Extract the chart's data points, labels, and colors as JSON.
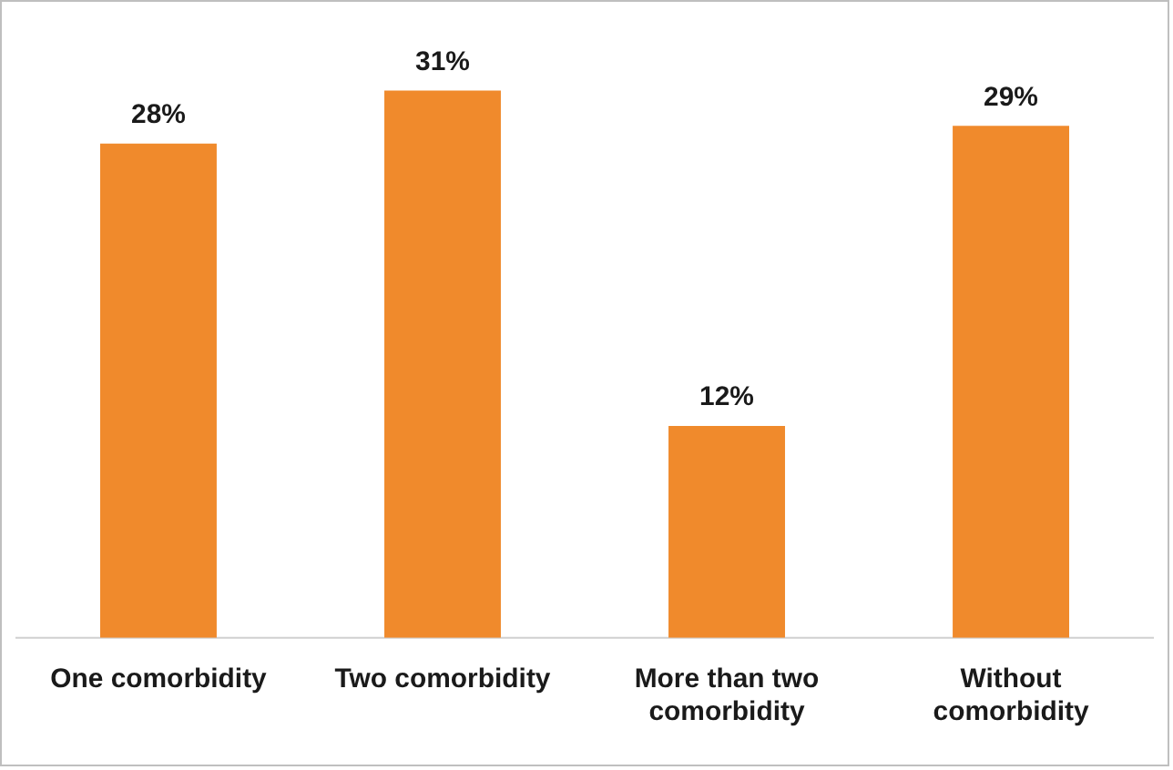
{
  "chart_data": {
    "type": "bar",
    "categories": [
      "One comorbidity",
      "Two comorbidity",
      "More than two comorbidity",
      "Without comorbidity"
    ],
    "values": [
      28,
      31,
      12,
      29
    ],
    "color": "#f08a2c",
    "value_labels": [
      "28%",
      "31%",
      "12%",
      "29%"
    ],
    "grid": false,
    "legend": false
  }
}
